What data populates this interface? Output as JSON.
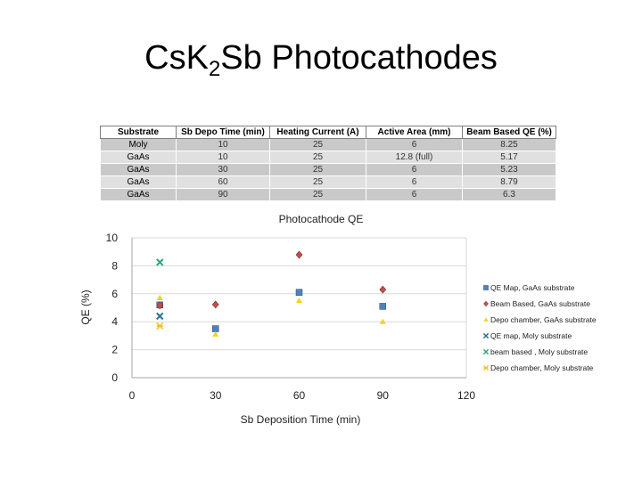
{
  "slide": {
    "title_main": "Cs",
    "title_k": "K",
    "title_sub": "2",
    "title_rest": "Sb Photocathodes"
  },
  "table": {
    "headers": [
      "Substrate",
      "Sb Depo Time (min)",
      "Heating Current (A)",
      "Active Area (mm)",
      "Beam Based QE (%)"
    ],
    "rows": [
      [
        "Moly",
        "10",
        "25",
        "6",
        "8.25"
      ],
      [
        "GaAs",
        "10",
        "25",
        "12.8 (full)",
        "5.17"
      ],
      [
        "GaAs",
        "30",
        "25",
        "6",
        "5.23"
      ],
      [
        "GaAs",
        "60",
        "25",
        "6",
        "8.79"
      ],
      [
        "GaAs",
        "90",
        "25",
        "6",
        "6.3"
      ]
    ]
  },
  "colors": {
    "grid": "#d9d9d9",
    "axis": "#a6a6a6"
  },
  "chart_data": {
    "type": "scatter",
    "title": "Photocathode QE",
    "xlabel": "Sb Deposition Time (min)",
    "ylabel": "QE (%)",
    "xlim": [
      0,
      120
    ],
    "ylim": [
      0,
      10
    ],
    "xticks": [
      0,
      30,
      60,
      90,
      120
    ],
    "yticks": [
      0,
      2,
      4,
      6,
      8,
      10
    ],
    "grid": true,
    "legend_position": "right",
    "series": [
      {
        "name": "QE Map, GaAs substrate",
        "color": "#4f81bd",
        "marker": "square",
        "points": [
          [
            10,
            5.2
          ],
          [
            30,
            3.5
          ],
          [
            60,
            6.1
          ],
          [
            90,
            5.1
          ]
        ]
      },
      {
        "name": "Beam Based, GaAs substrate",
        "color": "#c0504d",
        "marker": "diamond",
        "points": [
          [
            10,
            5.17
          ],
          [
            30,
            5.23
          ],
          [
            60,
            8.79
          ],
          [
            90,
            6.3
          ]
        ]
      },
      {
        "name": "Depo chamber, GaAs substrate",
        "color": "#f2d21b",
        "marker": "triangle",
        "points": [
          [
            10,
            5.7
          ],
          [
            30,
            3.1
          ],
          [
            60,
            5.5
          ],
          [
            90,
            4.0
          ]
        ]
      },
      {
        "name": "QE map, Moly substrate",
        "color": "#2c6e8f",
        "marker": "x",
        "points": [
          [
            10,
            4.4
          ]
        ]
      },
      {
        "name": "beam based , Moly substrate",
        "color": "#2aa876",
        "marker": "x",
        "points": [
          [
            10,
            8.25
          ]
        ]
      },
      {
        "name": "Depo chamber, Moly substrate",
        "color": "#f2c01b",
        "marker": "star",
        "points": [
          [
            10,
            3.7
          ]
        ]
      }
    ]
  }
}
